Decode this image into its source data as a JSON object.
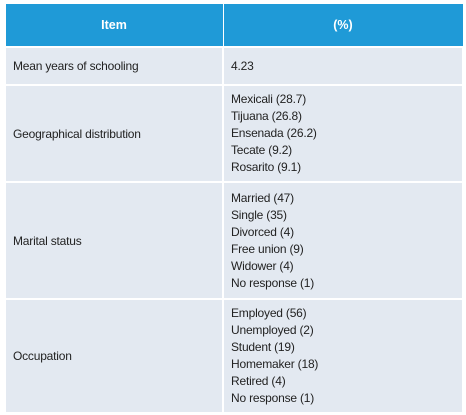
{
  "table": {
    "header": [
      "Item",
      "(%)"
    ],
    "rows": [
      {
        "item": "Mean years of schooling",
        "values": [
          "4.23"
        ]
      },
      {
        "item": "Geographical distribution",
        "values": [
          "Mexicali (28.7)",
          "Tijuana (26.8)",
          "Ensenada (26.2)",
          "Tecate (9.2)",
          "Rosarito (9.1)"
        ]
      },
      {
        "item": "Marital status",
        "values": [
          "Married (47)",
          "Single (35)",
          "Divorced (4)",
          "Free union (9)",
          "Widower (4)",
          "No response (1)"
        ]
      },
      {
        "item": "Occupation",
        "values": [
          "Employed (56)",
          "Unemployed (2)",
          "Student (19)",
          "Homemaker (18)",
          "Retired (4)",
          "No response (1)"
        ]
      }
    ]
  }
}
